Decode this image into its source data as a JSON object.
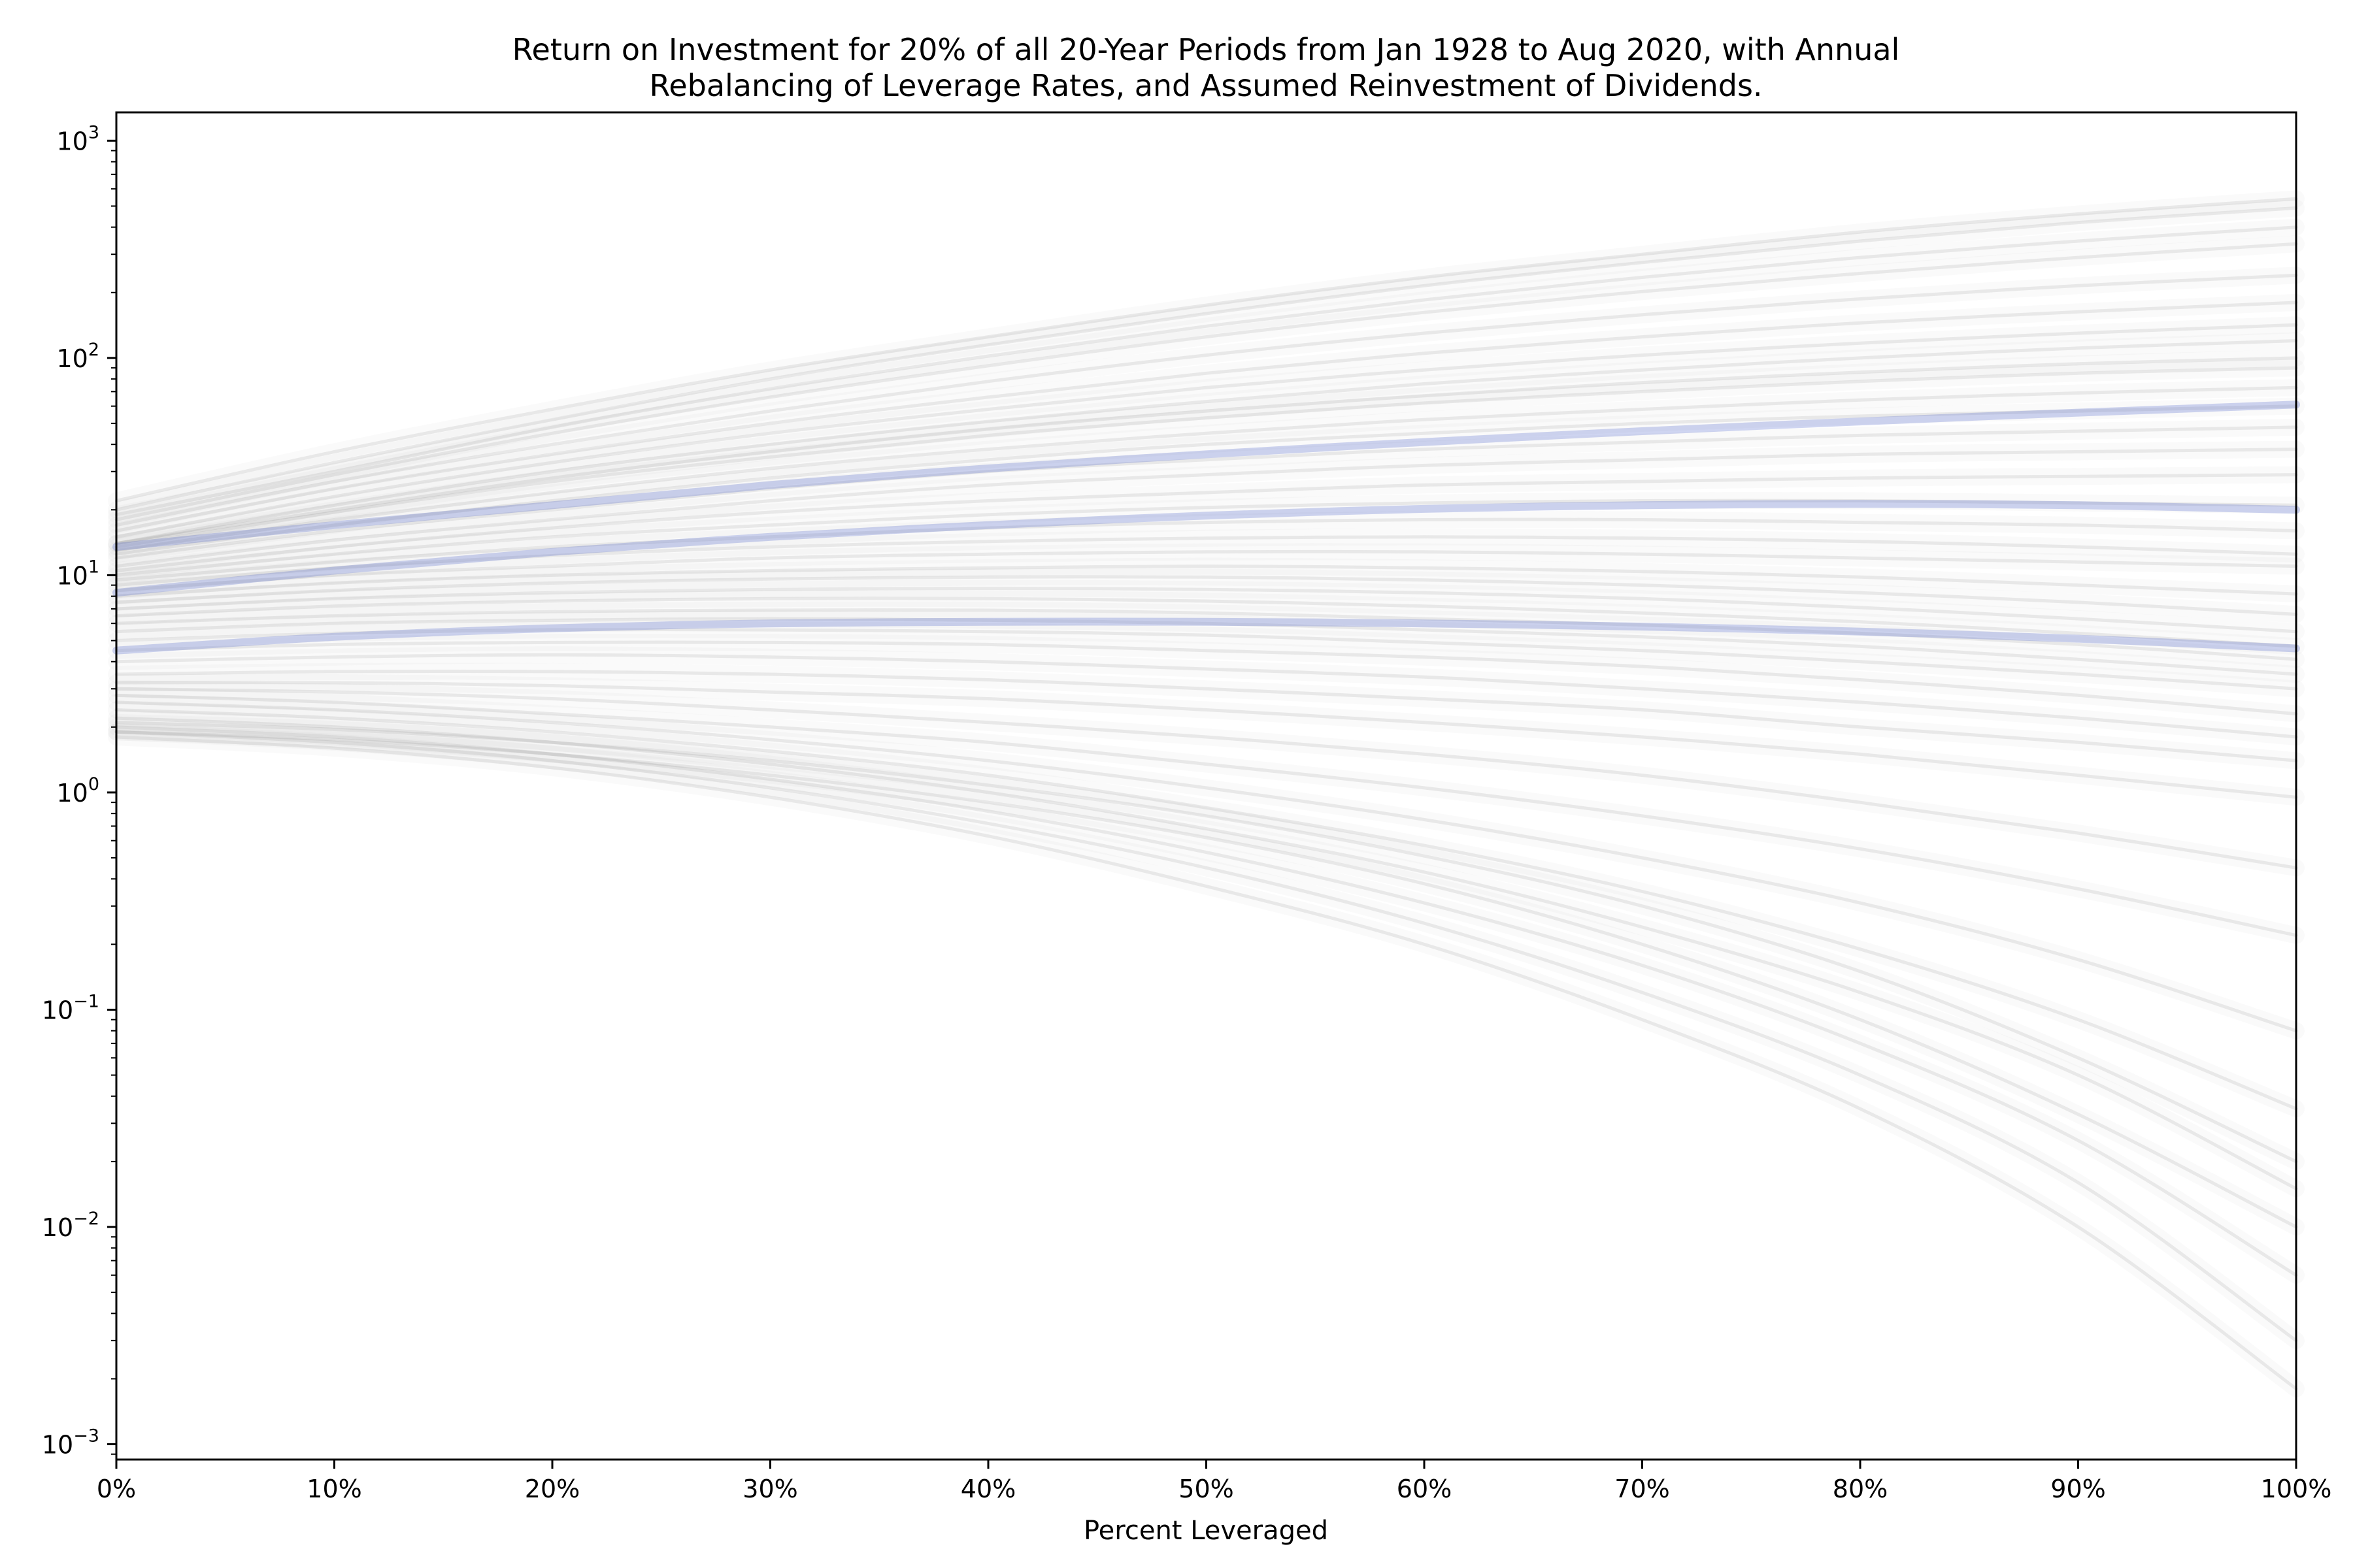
{
  "chart_data": {
    "type": "line",
    "title": "Return on Investment for 20% of all 20-Year Periods from Jan 1928 to Aug 2020, with Annual",
    "subtitle": "Rebalancing of Leverage Rates, and Assumed Reinvestment of Dividends.",
    "xlabel": "Percent Leveraged",
    "ylabel": "",
    "x_scale": "linear",
    "y_scale": "log",
    "xlim": [
      0,
      100
    ],
    "ylim": [
      0.00085,
      1350
    ],
    "x_ticks": [
      0,
      10,
      20,
      30,
      40,
      50,
      60,
      70,
      80,
      90,
      100
    ],
    "x_tick_labels": [
      "0%",
      "10%",
      "20%",
      "30%",
      "40%",
      "50%",
      "60%",
      "70%",
      "80%",
      "90%",
      "100%"
    ],
    "y_ticks": [
      0.001,
      0.01,
      0.1,
      1,
      10,
      100,
      1000
    ],
    "y_tick_labels": [
      {
        "base": "10",
        "exp": "−3"
      },
      {
        "base": "10",
        "exp": "−2"
      },
      {
        "base": "10",
        "exp": "−1"
      },
      {
        "base": "10",
        "exp": "0"
      },
      {
        "base": "10",
        "exp": "1"
      },
      {
        "base": "10",
        "exp": "2"
      },
      {
        "base": "10",
        "exp": "3"
      }
    ],
    "grid": false,
    "legend": "none",
    "colors": {
      "bundle_lines": "#6e6e6e",
      "highlight_lines": "#4058c8",
      "axes": "#000000"
    },
    "x": [
      0,
      10,
      20,
      30,
      40,
      50,
      60,
      70,
      80,
      90,
      100
    ],
    "series": [
      {
        "values": [
          22,
          37,
          58,
          88,
          125,
          175,
          235,
          300,
          380,
          460,
          540
        ]
      },
      {
        "values": [
          20,
          33,
          52,
          80,
          115,
          160,
          215,
          275,
          345,
          420,
          490
        ]
      },
      {
        "values": [
          19,
          30,
          48,
          72,
          102,
          140,
          185,
          235,
          290,
          345,
          400
        ]
      },
      {
        "values": [
          18,
          29,
          45,
          66,
          92,
          125,
          162,
          202,
          245,
          290,
          335
        ]
      },
      {
        "values": [
          17,
          27,
          40,
          57,
          78,
          103,
          130,
          158,
          187,
          215,
          240
        ]
      },
      {
        "values": [
          16,
          25,
          36,
          50,
          66,
          85,
          105,
          125,
          145,
          163,
          180
        ]
      },
      {
        "values": [
          15,
          23,
          33,
          45,
          58,
          73,
          88,
          103,
          117,
          130,
          142
        ]
      },
      {
        "values": [
          14,
          21,
          30,
          40,
          51,
          63,
          76,
          88,
          100,
          111,
          120
        ]
      },
      {
        "values": [
          14,
          20,
          28,
          37,
          47,
          57,
          67,
          77,
          86,
          94,
          100
        ]
      },
      {
        "values": [
          13.5,
          19.5,
          27,
          35,
          44,
          53,
          62,
          70,
          78,
          85,
          90
        ]
      },
      {
        "values": [
          13,
          18,
          24,
          31,
          38,
          45,
          52,
          58,
          64,
          69,
          73
        ]
      },
      {
        "values": [
          12.5,
          17,
          22,
          28,
          34,
          40,
          45,
          50,
          54,
          57,
          60
        ]
      },
      {
        "values": [
          12,
          16,
          20,
          25,
          30,
          34,
          38,
          41,
          44,
          46,
          48
        ]
      },
      {
        "values": [
          11,
          14.5,
          18,
          22,
          26,
          29,
          32,
          34,
          36,
          37,
          38
        ]
      },
      {
        "values": [
          10.5,
          13.5,
          16.5,
          19.5,
          22,
          24,
          26,
          27,
          28,
          28.5,
          29
        ]
      },
      {
        "values": [
          10,
          12.5,
          15,
          17,
          19,
          20.5,
          21.5,
          22,
          22,
          21.5,
          21
        ]
      },
      {
        "values": [
          9.5,
          11.5,
          13.5,
          15,
          16.5,
          17.5,
          18,
          18,
          17.5,
          17,
          16
        ]
      },
      {
        "values": [
          9,
          10.8,
          12.3,
          13.5,
          14.3,
          14.8,
          15,
          14.8,
          14.3,
          13.5,
          12.5
        ]
      },
      {
        "values": [
          8.5,
          10,
          11,
          12,
          12.5,
          12.8,
          12.8,
          12.5,
          12,
          11.5,
          11
        ]
      },
      {
        "values": [
          8,
          9.2,
          10,
          10.5,
          10.8,
          11,
          10.8,
          10.4,
          9.8,
          9,
          8.2
        ]
      },
      {
        "values": [
          7.5,
          8.5,
          9.2,
          9.6,
          9.8,
          9.8,
          9.5,
          9,
          8.3,
          7.5,
          6.6
        ]
      },
      {
        "values": [
          7,
          7.8,
          8.3,
          8.6,
          8.7,
          8.6,
          8.3,
          7.8,
          7.1,
          6.3,
          5.5
        ]
      },
      {
        "values": [
          6.5,
          7.2,
          7.6,
          7.8,
          7.8,
          7.6,
          7.2,
          6.7,
          6.1,
          5.4,
          4.7
        ]
      },
      {
        "values": [
          6,
          6.5,
          6.8,
          6.9,
          6.9,
          6.7,
          6.3,
          5.9,
          5.4,
          4.8,
          4.1
        ]
      },
      {
        "values": [
          5.5,
          6,
          6.2,
          6.3,
          6.2,
          6,
          5.6,
          5.2,
          4.7,
          4.1,
          3.5
        ]
      },
      {
        "values": [
          5,
          5.4,
          5.6,
          5.6,
          5.5,
          5.3,
          4.9,
          4.5,
          4,
          3.5,
          3
        ]
      },
      {
        "values": [
          4.5,
          4.8,
          4.9,
          4.9,
          4.8,
          4.5,
          4.2,
          3.8,
          3.3,
          2.8,
          2.3
        ]
      },
      {
        "values": [
          4,
          4.2,
          4.3,
          4.2,
          4,
          3.7,
          3.4,
          3,
          2.6,
          2.2,
          1.8
        ]
      },
      {
        "values": [
          3.5,
          3.6,
          3.6,
          3.5,
          3.3,
          3,
          2.7,
          2.4,
          2,
          1.7,
          1.4
        ]
      },
      {
        "values": [
          3.2,
          3.2,
          3.1,
          2.9,
          2.7,
          2.4,
          2.1,
          1.8,
          1.5,
          1.2,
          0.95
        ]
      },
      {
        "values": [
          3,
          2.9,
          2.7,
          2.4,
          2.1,
          1.8,
          1.5,
          1.2,
          0.9,
          0.65,
          0.45
        ]
      },
      {
        "values": [
          2.8,
          2.6,
          2.3,
          2,
          1.7,
          1.35,
          1.05,
          0.78,
          0.55,
          0.36,
          0.22
        ]
      },
      {
        "values": [
          2.6,
          2.4,
          2.1,
          1.75,
          1.4,
          1.05,
          0.75,
          0.5,
          0.31,
          0.17,
          0.08
        ]
      },
      {
        "values": [
          2.4,
          2.2,
          1.9,
          1.55,
          1.2,
          0.85,
          0.57,
          0.35,
          0.19,
          0.09,
          0.035
        ]
      },
      {
        "values": [
          2.2,
          2,
          1.7,
          1.35,
          1,
          0.68,
          0.43,
          0.24,
          0.12,
          0.05,
          0.015
        ]
      },
      {
        "values": [
          2,
          1.8,
          1.5,
          1.15,
          0.82,
          0.53,
          0.31,
          0.16,
          0.07,
          0.025,
          0.006
        ]
      },
      {
        "values": [
          1.9,
          1.7,
          1.4,
          1.05,
          0.72,
          0.45,
          0.25,
          0.12,
          0.05,
          0.016,
          0.003
        ]
      },
      {
        "values": [
          1.8,
          1.6,
          1.3,
          0.95,
          0.63,
          0.37,
          0.2,
          0.09,
          0.035,
          0.01,
          0.0018
        ]
      },
      {
        "values": [
          1.9,
          1.75,
          1.5,
          1.2,
          0.9,
          0.62,
          0.38,
          0.2,
          0.09,
          0.033,
          0.01
        ]
      },
      {
        "values": [
          2.1,
          1.95,
          1.7,
          1.4,
          1.08,
          0.78,
          0.51,
          0.3,
          0.15,
          0.06,
          0.02
        ]
      }
    ],
    "highlight_series": [
      {
        "values": [
          13.5,
          17,
          21,
          26,
          31,
          36,
          41,
          46,
          51,
          56,
          61
        ]
      },
      {
        "values": [
          8.3,
          10.5,
          12.8,
          15,
          17,
          18.8,
          20.2,
          21,
          21.3,
          21,
          20
        ]
      },
      {
        "values": [
          4.5,
          5.2,
          5.7,
          6,
          6.1,
          6.1,
          6,
          5.8,
          5.5,
          5.1,
          4.6
        ]
      }
    ]
  }
}
